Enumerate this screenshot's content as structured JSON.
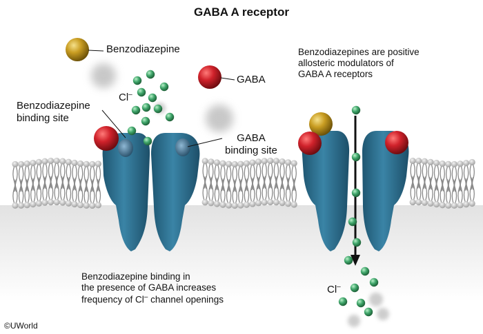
{
  "title": "GABA A receptor",
  "legend": {
    "benzodiazepine": "Benzodiazepine",
    "gaba": "GABA"
  },
  "left_labels": {
    "bzd_site_line1": "Benzodiazepine",
    "bzd_site_line2": "binding site",
    "gaba_site_line1": "GABA",
    "gaba_site_line2": "binding site",
    "chloride_base": "Cl",
    "chloride_sup": "–"
  },
  "right_note": {
    "line1": "Benzodiazepines are positive",
    "line2": "allosteric modulators of",
    "line3": "GABA A receptors"
  },
  "bottom_note": {
    "line1": "Benzodiazepine binding in",
    "line2": "the presence of GABA increases",
    "line3_pre": "frequency of Cl",
    "line3_sup": "–",
    "line3_post": " channel openings"
  },
  "right_chloride_base": "Cl",
  "right_chloride_sup": "–",
  "copyright": "©UWorld",
  "colors": {
    "receptor": "#2f6f8e",
    "gaba": "#c8202a",
    "benzodiazepine": "#c49a1e",
    "chloride": "#3fa06a",
    "membrane_head": "#dcdcdc"
  }
}
